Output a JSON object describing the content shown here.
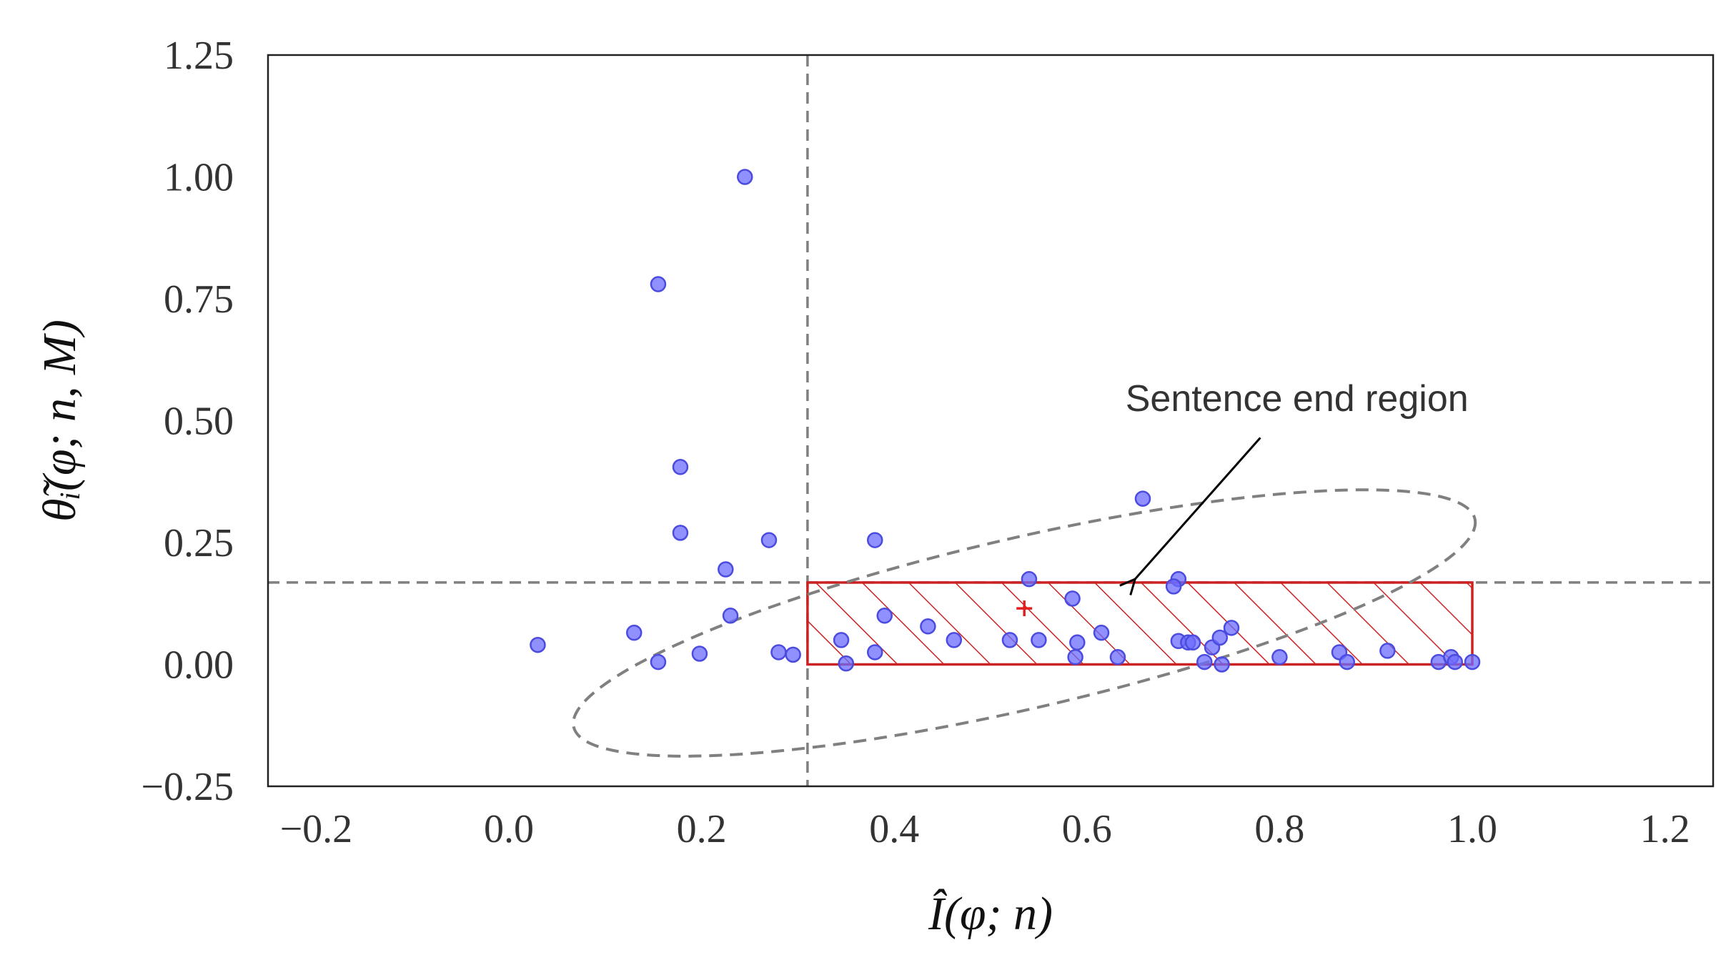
{
  "chart_data": {
    "type": "scatter",
    "title": "",
    "xlabel": "Î(φ; n)",
    "ylabel": "θ̃ᵢ(φ; n, M)",
    "xlim": [
      -0.25,
      1.25
    ],
    "ylim": [
      -0.25,
      1.25
    ],
    "grid": false,
    "xticks": [
      -0.2,
      0.0,
      0.2,
      0.4,
      0.6,
      0.8,
      1.0,
      1.2
    ],
    "xtick_labels": [
      "−0.2",
      "0.0",
      "0.2",
      "0.4",
      "0.6",
      "0.8",
      "1.0",
      "1.2"
    ],
    "yticks": [
      1.25,
      1.0,
      0.75,
      0.5,
      0.25,
      0.0,
      -0.25
    ],
    "ytick_labels": [
      "1.25",
      "1.00",
      "0.75",
      "0.50",
      "0.25",
      "0.00",
      "−0.25"
    ],
    "points": [
      {
        "x": 0.03,
        "y": 0.04
      },
      {
        "x": 0.13,
        "y": 0.065
      },
      {
        "x": 0.155,
        "y": 0.005
      },
      {
        "x": 0.155,
        "y": 0.78
      },
      {
        "x": 0.178,
        "y": 0.405
      },
      {
        "x": 0.178,
        "y": 0.27
      },
      {
        "x": 0.198,
        "y": 0.022
      },
      {
        "x": 0.225,
        "y": 0.195
      },
      {
        "x": 0.23,
        "y": 0.1
      },
      {
        "x": 0.245,
        "y": 1.0
      },
      {
        "x": 0.27,
        "y": 0.255
      },
      {
        "x": 0.28,
        "y": 0.025
      },
      {
        "x": 0.295,
        "y": 0.02
      },
      {
        "x": 0.345,
        "y": 0.05
      },
      {
        "x": 0.35,
        "y": 0.002
      },
      {
        "x": 0.38,
        "y": 0.255
      },
      {
        "x": 0.38,
        "y": 0.025
      },
      {
        "x": 0.39,
        "y": 0.1
      },
      {
        "x": 0.435,
        "y": 0.078
      },
      {
        "x": 0.462,
        "y": 0.05
      },
      {
        "x": 0.52,
        "y": 0.05
      },
      {
        "x": 0.54,
        "y": 0.175
      },
      {
        "x": 0.55,
        "y": 0.05
      },
      {
        "x": 0.585,
        "y": 0.135
      },
      {
        "x": 0.588,
        "y": 0.015
      },
      {
        "x": 0.59,
        "y": 0.045
      },
      {
        "x": 0.615,
        "y": 0.065
      },
      {
        "x": 0.632,
        "y": 0.015
      },
      {
        "x": 0.658,
        "y": 0.34
      },
      {
        "x": 0.695,
        "y": 0.175
      },
      {
        "x": 0.69,
        "y": 0.16
      },
      {
        "x": 0.695,
        "y": 0.048
      },
      {
        "x": 0.705,
        "y": 0.045
      },
      {
        "x": 0.71,
        "y": 0.045
      },
      {
        "x": 0.722,
        "y": 0.005
      },
      {
        "x": 0.73,
        "y": 0.035
      },
      {
        "x": 0.738,
        "y": 0.055
      },
      {
        "x": 0.74,
        "y": 0.0
      },
      {
        "x": 0.75,
        "y": 0.075
      },
      {
        "x": 0.8,
        "y": 0.015
      },
      {
        "x": 0.862,
        "y": 0.025
      },
      {
        "x": 0.87,
        "y": 0.005
      },
      {
        "x": 0.912,
        "y": 0.028
      },
      {
        "x": 0.965,
        "y": 0.005
      },
      {
        "x": 0.978,
        "y": 0.015
      },
      {
        "x": 0.982,
        "y": 0.005
      },
      {
        "x": 1.0,
        "y": 0.005
      }
    ],
    "mean_marker": {
      "x": 0.535,
      "y": 0.115,
      "color": "#e02020"
    },
    "threshold_lines": {
      "x": 0.31,
      "y": 0.168
    },
    "region": {
      "x0": 0.31,
      "x1": 1.0,
      "y0": 0.0,
      "y1": 0.168,
      "color": "#cc2222"
    },
    "ellipse": {
      "cx": 0.535,
      "cy": 0.085,
      "rx": 0.48,
      "ry": 0.175,
      "angle_deg": 13
    },
    "annotation": {
      "text": "Sentence end region",
      "text_x": 0.64,
      "text_y": 0.52,
      "arrow_from": {
        "x": 0.78,
        "y": 0.465
      },
      "arrow_to": {
        "x": 0.65,
        "y": 0.175
      }
    }
  }
}
